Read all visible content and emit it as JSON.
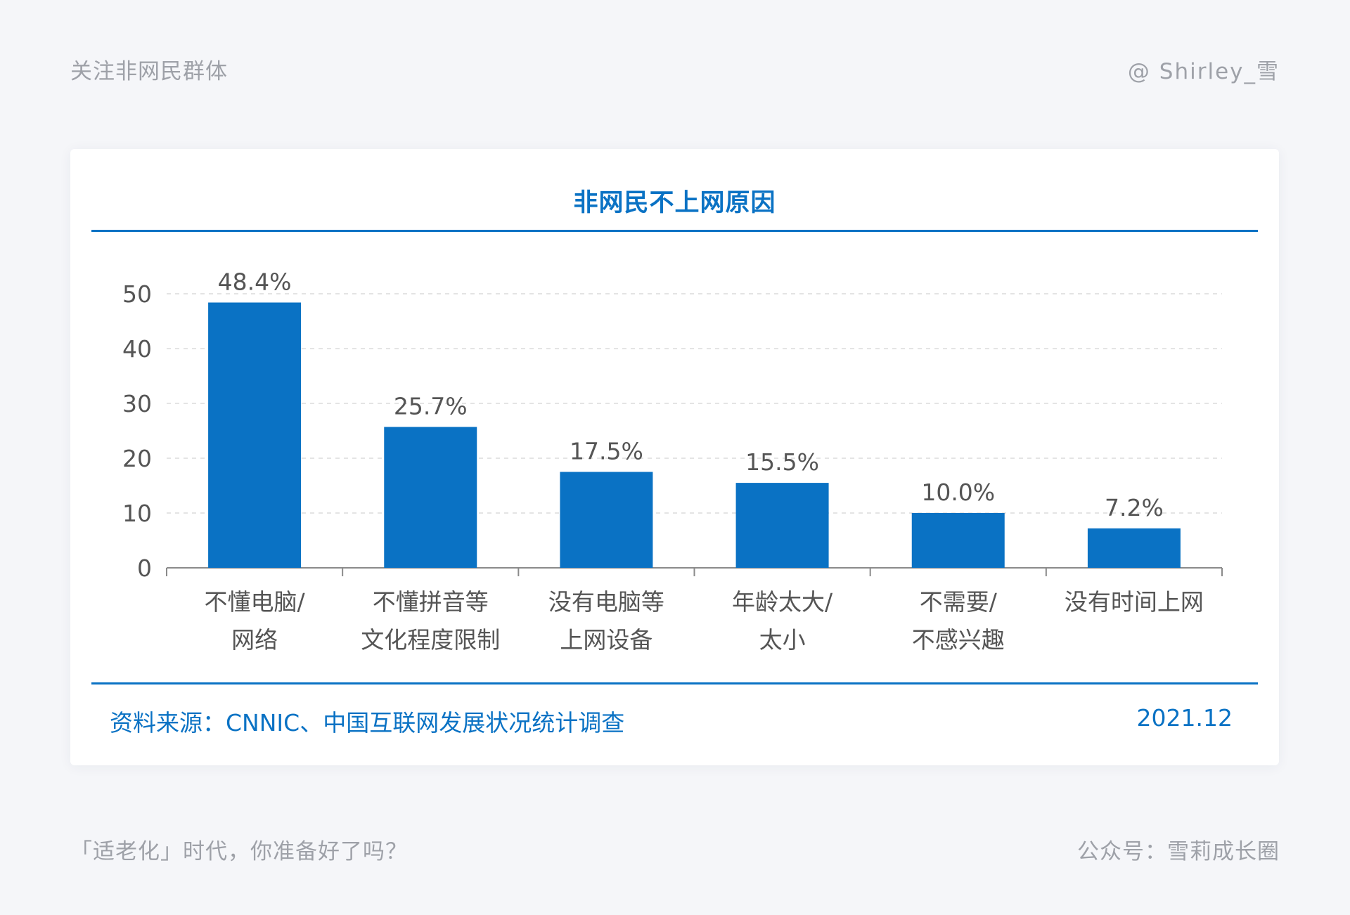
{
  "header": {
    "left_text": "关注非网民群体",
    "right_text": "@ Shirley_雪"
  },
  "footer": {
    "left_text": "「适老化」时代，你准备好了吗？",
    "right_text": "公众号：雪莉成长圈"
  },
  "card": {
    "source_text": "资料来源：CNNIC、中国互联网发展状况统计调查",
    "date_text": "2021.12"
  },
  "colors": {
    "accent": "#0a72c4",
    "bar": "#0a72c4",
    "muted_text": "#9ea1a8",
    "axis_text": "#555555",
    "grid": "#dcdcdc"
  },
  "chart_data": {
    "type": "bar",
    "title": "非网民不上网原因",
    "categories": [
      [
        "不懂电脑/",
        "网络"
      ],
      [
        "不懂拼音等",
        "文化程度限制"
      ],
      [
        "没有电脑等",
        "上网设备"
      ],
      [
        "年龄太大/",
        "太小"
      ],
      [
        "不需要/",
        "不感兴趣"
      ],
      [
        "没有时间上网"
      ]
    ],
    "values": [
      48.4,
      25.7,
      17.5,
      15.5,
      10.0,
      7.2
    ],
    "data_labels": [
      "48.4%",
      "25.7%",
      "17.5%",
      "15.5%",
      "10.0%",
      "7.2%"
    ],
    "y_ticks": [
      0,
      10,
      20,
      30,
      40,
      50
    ],
    "ylim": [
      0,
      50
    ],
    "grid": true,
    "legend": "none"
  }
}
